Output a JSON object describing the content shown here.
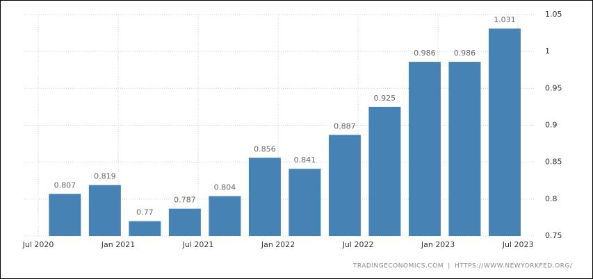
{
  "chart_data": {
    "type": "bar",
    "x": [
      "2020-09",
      "2020-12",
      "2021-03",
      "2021-06",
      "2021-09",
      "2021-12",
      "2022-03",
      "2022-06",
      "2022-09",
      "2022-12",
      "2023-03",
      "2023-06"
    ],
    "values": [
      0.807,
      0.819,
      0.77,
      0.787,
      0.804,
      0.856,
      0.841,
      0.887,
      0.925,
      0.986,
      0.986,
      1.031
    ],
    "color": "#4682b4",
    "xticks": [
      {
        "value": "2020-07",
        "label": "Jul 2020"
      },
      {
        "value": "2021-01",
        "label": "Jan 2021"
      },
      {
        "value": "2021-07",
        "label": "Jul 2021"
      },
      {
        "value": "2022-01",
        "label": "Jan 2022"
      },
      {
        "value": "2022-07",
        "label": "Jul 2022"
      },
      {
        "value": "2023-01",
        "label": "Jan 2023"
      },
      {
        "value": "2023-07",
        "label": "Jul 2023"
      }
    ],
    "ylim": [
      0.75,
      1.05
    ],
    "yticks": [
      0.75,
      0.8,
      0.85,
      0.9,
      0.95,
      1,
      1.05
    ],
    "grid": true,
    "source": [
      "TRADINGECONOMICS.COM",
      "HTTPS://WWW.NEWYORKFED.ORG/"
    ]
  }
}
